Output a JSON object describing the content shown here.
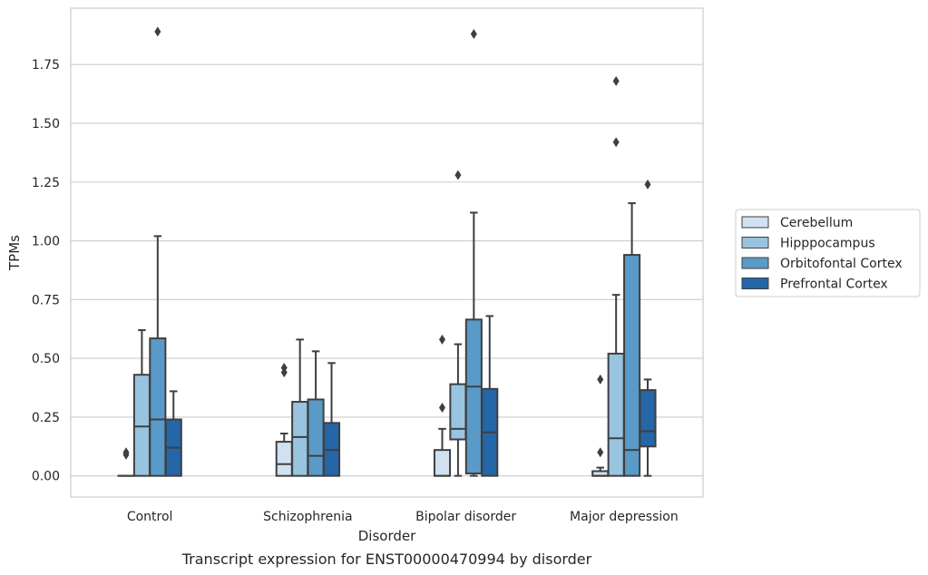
{
  "chart_data": {
    "type": "box",
    "title": "",
    "caption": "Transcript expression for ENST00000470994 by disorder",
    "xlabel": "Disorder",
    "ylabel": "TPMs",
    "ylim": [
      -0.09,
      1.99
    ],
    "yticks": [
      0.0,
      0.25,
      0.5,
      0.75,
      1.0,
      1.25,
      1.5,
      1.75
    ],
    "ytick_labels": [
      "0.00",
      "0.25",
      "0.50",
      "0.75",
      "1.00",
      "1.25",
      "1.50",
      "1.75"
    ],
    "grid": "horizontal",
    "legend_position": "right",
    "categories": [
      "Control",
      "Schizophrenia",
      "Bipolar disorder",
      "Major depression"
    ],
    "series": [
      {
        "name": "Cerebellum",
        "color": "#d0e2f2",
        "boxes": [
          {
            "whislo": 0.0,
            "q1": 0.0,
            "med": 0.0,
            "q3": 0.0,
            "whishi": 0.0,
            "fliers": [
              0.09,
              0.1
            ]
          },
          {
            "whislo": 0.0,
            "q1": 0.0,
            "med": 0.05,
            "q3": 0.145,
            "whishi": 0.18,
            "fliers": [
              0.44,
              0.46
            ]
          },
          {
            "whislo": 0.0,
            "q1": 0.0,
            "med": 0.0,
            "q3": 0.11,
            "whishi": 0.2,
            "fliers": [
              0.29,
              0.58
            ]
          },
          {
            "whislo": 0.0,
            "q1": 0.0,
            "med": 0.0,
            "q3": 0.02,
            "whishi": 0.035,
            "fliers": [
              0.1,
              0.41
            ]
          }
        ]
      },
      {
        "name": "Hipppocampus",
        "color": "#99c4e0",
        "boxes": [
          {
            "whislo": 0.0,
            "q1": 0.0,
            "med": 0.21,
            "q3": 0.43,
            "whishi": 0.62,
            "fliers": []
          },
          {
            "whislo": 0.0,
            "q1": 0.0,
            "med": 0.165,
            "q3": 0.315,
            "whishi": 0.58,
            "fliers": []
          },
          {
            "whislo": 0.0,
            "q1": 0.155,
            "med": 0.2,
            "q3": 0.39,
            "whishi": 0.56,
            "fliers": [
              1.28
            ]
          },
          {
            "whislo": 0.0,
            "q1": 0.0,
            "med": 0.16,
            "q3": 0.52,
            "whishi": 0.77,
            "fliers": [
              1.42,
              1.68
            ]
          }
        ]
      },
      {
        "name": "Orbitofontal Cortex",
        "color": "#5a9ac8",
        "boxes": [
          {
            "whislo": 0.0,
            "q1": 0.0,
            "med": 0.24,
            "q3": 0.585,
            "whishi": 1.02,
            "fliers": [
              1.89
            ]
          },
          {
            "whislo": 0.0,
            "q1": 0.0,
            "med": 0.085,
            "q3": 0.325,
            "whishi": 0.53,
            "fliers": []
          },
          {
            "whislo": 0.0,
            "q1": 0.01,
            "med": 0.38,
            "q3": 0.665,
            "whishi": 1.12,
            "fliers": [
              1.88
            ]
          },
          {
            "whislo": 0.0,
            "q1": 0.0,
            "med": 0.11,
            "q3": 0.94,
            "whishi": 1.16,
            "fliers": []
          }
        ]
      },
      {
        "name": "Prefrontal Cortex",
        "color": "#2466a7",
        "boxes": [
          {
            "whislo": 0.0,
            "q1": 0.0,
            "med": 0.12,
            "q3": 0.24,
            "whishi": 0.36,
            "fliers": []
          },
          {
            "whislo": 0.0,
            "q1": 0.0,
            "med": 0.11,
            "q3": 0.225,
            "whishi": 0.48,
            "fliers": []
          },
          {
            "whislo": 0.0,
            "q1": 0.0,
            "med": 0.185,
            "q3": 0.37,
            "whishi": 0.68,
            "fliers": []
          },
          {
            "whislo": 0.0,
            "q1": 0.125,
            "med": 0.19,
            "q3": 0.365,
            "whishi": 0.41,
            "fliers": [
              1.24
            ]
          }
        ]
      }
    ]
  }
}
